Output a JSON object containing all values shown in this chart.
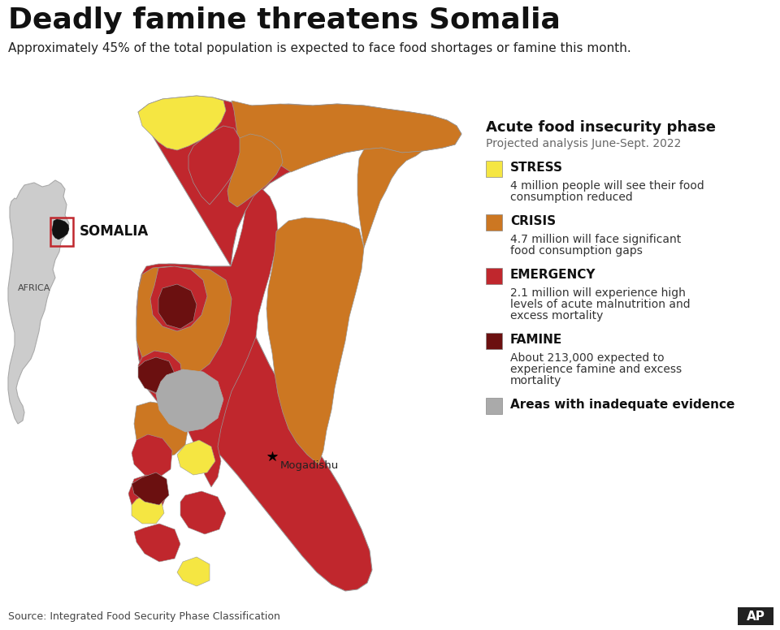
{
  "title": "Deadly famine threatens Somalia",
  "subtitle": "Approximately 45% of the total population is expected to face food shortages or famine this month.",
  "legend_title": "Acute food insecurity phase",
  "legend_subtitle": "Projected analysis June-Sept. 2022",
  "legend_items": [
    {
      "label": "STRESS",
      "desc": "4 million people will see their food\nconsumption reduced",
      "color": "#F5E642"
    },
    {
      "label": "CRISIS",
      "desc": "4.7 million will face significant\nfood consumption gaps",
      "color": "#CC7722"
    },
    {
      "label": "EMERGENCY",
      "desc": "2.1 million will experience high\nlevels of acute malnutrition and\nexcess mortality",
      "color": "#C0272D"
    },
    {
      "label": "FAMINE",
      "desc": "About 213,000 expected to\nexperience famine and excess\nmortality",
      "color": "#6B1010"
    },
    {
      "label": "Areas with inadequate evidence",
      "desc": "",
      "color": "#AAAAAA"
    }
  ],
  "source_text": "Source: Integrated Food Security Phase Classification",
  "ap_logo": "AP",
  "bg_color": "#FFFFFF",
  "africa_label": "AFRICA",
  "somalia_label": "SOMALIA",
  "mogadishu_label": "Mogadishu",
  "title_fontsize": 26,
  "subtitle_fontsize": 11,
  "legend_title_fontsize": 13,
  "legend_subtitle_fontsize": 10,
  "legend_label_fontsize": 11,
  "legend_desc_fontsize": 10,
  "source_fontsize": 9
}
